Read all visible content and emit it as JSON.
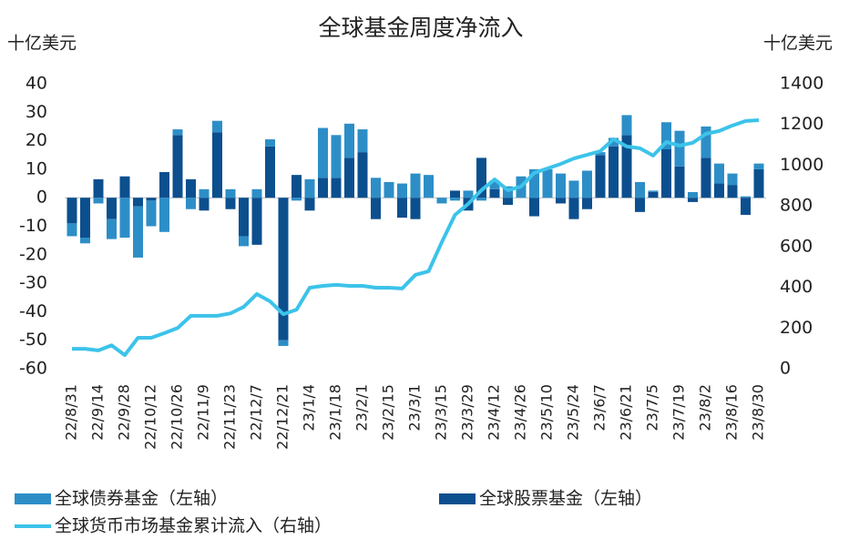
{
  "chart_data": {
    "type": "bar",
    "title": "全球基金周度净流入",
    "y_label": "十亿美元",
    "y2_label": "十亿美元",
    "categories": [
      "22/8/31",
      null,
      "22/9/14",
      null,
      "22/9/28",
      null,
      "22/10/12",
      null,
      "22/10/26",
      null,
      "22/11/9",
      null,
      "22/11/23",
      null,
      "22/12/7",
      null,
      "22/12/21",
      null,
      "23/1/4",
      null,
      "23/1/18",
      null,
      "23/2/1",
      null,
      "23/2/15",
      null,
      "23/3/1",
      null,
      "23/3/15",
      null,
      "23/3/29",
      null,
      "23/4/12",
      null,
      "23/4/26",
      null,
      "23/5/10",
      null,
      "23/5/24",
      null,
      "23/6/7",
      null,
      "23/6/21",
      null,
      "23/7/5",
      null,
      "23/7/19",
      null,
      "23/8/2",
      null,
      "23/8/16",
      null,
      "23/8/30"
    ],
    "series": [
      {
        "name": "全球股票基金（左轴）",
        "color": "#0c4f8e",
        "type": "bar",
        "values": [
          -9,
          -14,
          6.5,
          -7.5,
          7.5,
          -3,
          -1,
          9,
          22,
          6.5,
          -4.5,
          23,
          -4,
          -13.5,
          -16.5,
          18,
          -50,
          8,
          -4.5,
          7,
          7,
          14,
          16,
          -7.5,
          0,
          -7,
          -7.5,
          0,
          0,
          2.5,
          -4.5,
          14,
          3,
          -2.5,
          0,
          -6.5,
          0,
          -2,
          -7.5,
          -4,
          15,
          18,
          22,
          -5,
          2,
          17,
          11,
          -1.5,
          14,
          5,
          4.5,
          -6,
          10
        ]
      },
      {
        "name": "全球债券基金（左轴）",
        "color": "#2d8ec7",
        "type": "bar",
        "values": [
          -4.5,
          -2,
          -2,
          -7,
          -14,
          -18,
          -9,
          -12,
          2,
          -4,
          3,
          4,
          3,
          -3.5,
          3,
          2.5,
          -2,
          -1,
          6.5,
          17.5,
          15,
          12,
          8,
          7,
          5.5,
          5,
          8.5,
          8,
          -2,
          -1,
          2.5,
          -1,
          3,
          4,
          7.5,
          10,
          10,
          8.5,
          6,
          9.5,
          1,
          3,
          7,
          5.5,
          0.5,
          9.5,
          12.5,
          2,
          11,
          7,
          4,
          0.5,
          2
        ]
      },
      {
        "name": "全球货币市场基金累计流入（右轴）",
        "color": "#3cc3ea",
        "type": "line",
        "axis": "y2",
        "values": [
          98,
          98,
          90,
          115,
          67,
          152,
          152,
          175,
          200,
          260,
          260,
          260,
          272,
          304,
          367,
          331,
          268,
          290,
          398,
          407,
          412,
          407,
          407,
          398,
          398,
          394,
          461,
          479,
          622,
          756,
          810,
          877,
          930,
          877,
          895,
          962,
          984,
          1006,
          1033,
          1051,
          1069,
          1128,
          1092,
          1083,
          1047,
          1114,
          1096,
          1110,
          1154,
          1168,
          1195,
          1217,
          1221
        ]
      }
    ],
    "ylim": [
      -60,
      40
    ],
    "yticks": [
      -60,
      -50,
      -40,
      -30,
      -20,
      -10,
      0,
      10,
      20,
      30,
      40
    ],
    "y2lim": [
      0,
      1400
    ],
    "y2ticks": [
      0,
      200,
      400,
      600,
      800,
      1000,
      1200,
      1400
    ],
    "grid": false
  }
}
